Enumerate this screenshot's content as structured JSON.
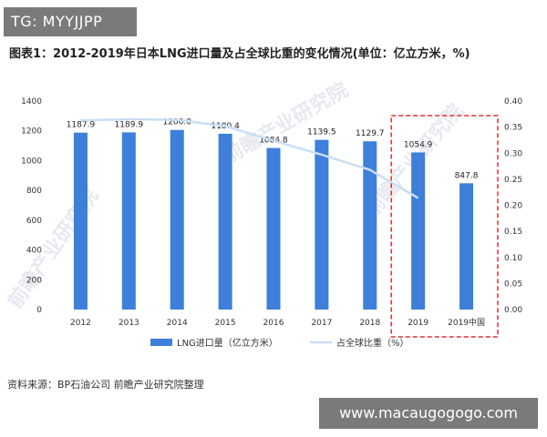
{
  "overlay": {
    "tag": "TG: MYYJJPP",
    "url": "www.macaugogogo.com"
  },
  "title": "图表1：2012-2019年日本LNG进口量及占全球比重的变化情况(单位：亿立方米，%)",
  "source": "资料来源：BP石油公司 前瞻产业研究院整理",
  "chart_data": {
    "type": "bar",
    "categories": [
      "2012",
      "2013",
      "2014",
      "2015",
      "2016",
      "2017",
      "2018",
      "2019",
      "2019中国"
    ],
    "series": [
      {
        "name": "LNG进口量（亿立方米）",
        "type": "bar",
        "axis": "left",
        "values": [
          1187.9,
          1189.9,
          1206.0,
          1180.4,
          1084.8,
          1139.5,
          1129.7,
          1054.9,
          847.8
        ],
        "labels": [
          "1187.9",
          "1189.9",
          "1206.0",
          "1180.4",
          "1084.8",
          "1139.5",
          "1129.7",
          "1054.9",
          "847.8"
        ]
      },
      {
        "name": "占全球比重（%）",
        "type": "line",
        "axis": "right",
        "values": [
          0.363,
          0.365,
          0.364,
          0.352,
          0.324,
          0.297,
          0.268,
          0.214,
          null
        ]
      }
    ],
    "y_left": {
      "min": 0,
      "max": 1400,
      "ticks": [
        "0",
        "200",
        "400",
        "600",
        "800",
        "1000",
        "1200",
        "1400"
      ]
    },
    "y_right": {
      "min": 0,
      "max": 0.4,
      "ticks": [
        "0.00",
        "0.05",
        "0.10",
        "0.15",
        "0.20",
        "0.25",
        "0.30",
        "0.35",
        "0.40"
      ]
    },
    "highlight_categories": [
      "2019",
      "2019中国"
    ],
    "colors": {
      "bar": "#3d7fd9",
      "line": "#c9def5",
      "highlight_border": "#e03030"
    },
    "legend_position": "bottom",
    "grid": false
  }
}
